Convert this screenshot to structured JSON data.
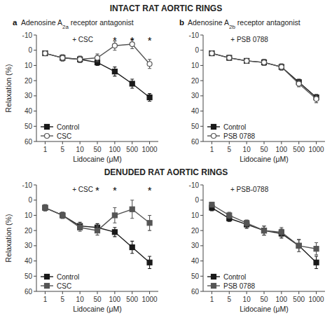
{
  "titles": [
    "INTACT RAT AORTIC RINGS",
    "DENUDED RAT AORTIC RINGS"
  ],
  "chart_data": [
    {
      "type": "line",
      "panel_label": "a",
      "subtitle": [
        {
          "text": "Adenosine A"
        },
        {
          "text": "2a",
          "sub": true
        },
        {
          "text": " receptor antagonist"
        }
      ],
      "categories": [
        "1",
        "5",
        "10",
        "50",
        "100",
        "500",
        "1000"
      ],
      "xlabel": "Lidocaine (μM)",
      "ylabel": "Relaxation (%)",
      "ylim": [
        60,
        -10
      ],
      "yticks": [
        -10,
        0,
        10,
        20,
        30,
        40,
        50,
        60
      ],
      "grid": false,
      "legend": "lower left",
      "annotations": [
        {
          "text": "+ CSC"
        },
        {
          "text": "*",
          "x": "100"
        },
        {
          "text": "*",
          "x": "500"
        },
        {
          "text": "*",
          "x": "1000"
        }
      ],
      "series": [
        {
          "name": "Control",
          "color": "#1a1a1a",
          "marker": "square",
          "values": [
            2,
            5,
            6,
            8,
            14,
            22,
            31
          ],
          "errors": [
            1.5,
            2,
            2,
            2,
            3,
            3,
            2.5
          ]
        },
        {
          "name": "CSC",
          "color": "#555555",
          "marker": "open-circle",
          "values": [
            2,
            5,
            6,
            5,
            -3,
            -4,
            9
          ],
          "errors": [
            1.5,
            2,
            2,
            2.5,
            3,
            3,
            3
          ]
        }
      ]
    },
    {
      "type": "line",
      "panel_label": "b",
      "subtitle": [
        {
          "text": "Adenosine A"
        },
        {
          "text": "2b",
          "sub": true
        },
        {
          "text": " receptor antagonist"
        }
      ],
      "categories": [
        "1",
        "5",
        "10",
        "50",
        "100",
        "500",
        "1000"
      ],
      "xlabel": "Lidocaine (μM)",
      "ylim": [
        60,
        -10
      ],
      "yticks": [
        -10,
        0,
        10,
        20,
        30,
        40,
        50,
        60
      ],
      "grid": false,
      "legend": "lower left",
      "annotations": [
        {
          "text": "+ PSB 0788"
        }
      ],
      "series": [
        {
          "name": "Control",
          "color": "#1a1a1a",
          "marker": "square",
          "values": [
            2,
            5,
            7,
            8,
            11,
            21,
            31
          ],
          "errors": [
            1,
            1.5,
            1.5,
            2,
            2,
            2,
            2
          ]
        },
        {
          "name": "PSB 0788",
          "color": "#555555",
          "marker": "open-circle",
          "values": [
            2,
            5,
            7,
            8,
            11,
            22,
            32
          ],
          "errors": [
            1,
            1.5,
            1.5,
            2,
            2,
            2,
            2.5
          ]
        }
      ]
    },
    {
      "type": "line",
      "categories": [
        "1",
        "5",
        "10",
        "50",
        "100",
        "500",
        "1000"
      ],
      "xlabel": "Lidocaine (μM)",
      "ylabel": "Relaxation (%)",
      "ylim": [
        60,
        -10
      ],
      "yticks": [
        -10,
        0,
        10,
        20,
        30,
        40,
        50,
        60
      ],
      "grid": false,
      "legend": "lower left",
      "annotations": [
        {
          "text": "+ CSC"
        },
        {
          "text": "*",
          "x": "50"
        },
        {
          "text": "*",
          "x": "100"
        },
        {
          "text": "*",
          "x": "1000"
        }
      ],
      "series": [
        {
          "name": "Control",
          "color": "#1a1a1a",
          "marker": "square",
          "values": [
            5,
            10,
            17,
            18,
            21,
            31,
            41
          ],
          "errors": [
            2,
            2,
            2.5,
            2.5,
            3,
            4,
            4
          ]
        },
        {
          "name": "CSC",
          "color": "#555555",
          "marker": "square",
          "values": [
            5,
            10,
            18,
            20,
            10,
            6,
            15
          ],
          "errors": [
            2,
            2,
            2.5,
            3,
            5,
            6,
            5
          ]
        }
      ]
    },
    {
      "type": "line",
      "categories": [
        "1",
        "5",
        "10",
        "50",
        "100",
        "500",
        "1000"
      ],
      "xlabel": "Lidocaine (μM)",
      "ylim": [
        60,
        -10
      ],
      "yticks": [
        -10,
        0,
        10,
        20,
        30,
        40,
        50,
        60
      ],
      "grid": false,
      "legend": "lower left",
      "annotations": [
        {
          "text": "+ PSB-0788"
        }
      ],
      "series": [
        {
          "name": "Control",
          "color": "#1a1a1a",
          "marker": "square",
          "values": [
            5,
            12,
            16,
            20,
            22,
            30,
            41
          ],
          "errors": [
            2,
            2,
            2.5,
            3,
            3,
            4,
            4
          ]
        },
        {
          "name": "PSB 0788",
          "color": "#555555",
          "marker": "square",
          "values": [
            3,
            10,
            15,
            20,
            21,
            30,
            32
          ],
          "errors": [
            1.5,
            2,
            2,
            3,
            3,
            4,
            4
          ]
        }
      ]
    }
  ]
}
